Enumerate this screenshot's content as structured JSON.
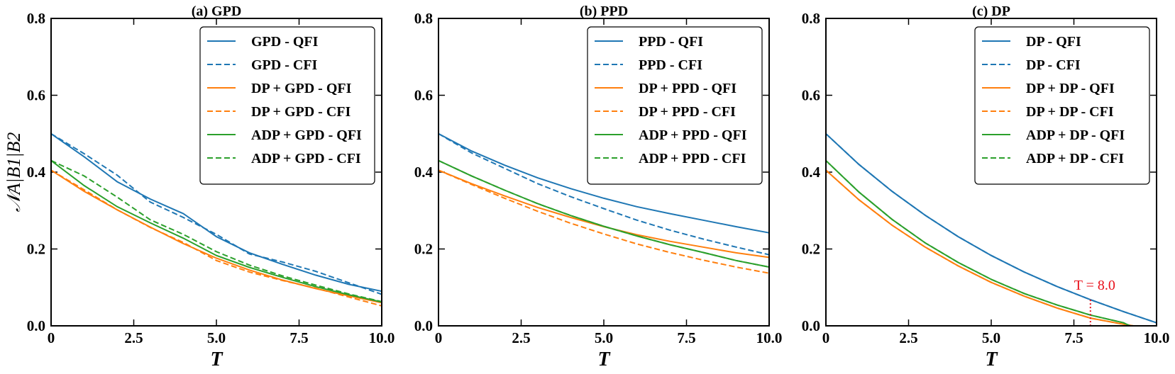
{
  "chart_data": [
    {
      "type": "line",
      "title": "(a) GPD",
      "xlabel": "T",
      "ylabel": "𝒩A|B1|B2",
      "xlim": [
        0,
        10
      ],
      "ylim": [
        0,
        0.8
      ],
      "xticks": [
        "0",
        "2.5",
        "5.0",
        "7.5",
        "10.0"
      ],
      "yticks": [
        "0.0",
        "0.2",
        "0.4",
        "0.6",
        "0.8"
      ],
      "legend_loc": "upper-right",
      "series": [
        {
          "name": "GPD - QFI",
          "color": "#1f77b4",
          "dash": "solid",
          "x": [
            0,
            1,
            2,
            3,
            4,
            5,
            6,
            7,
            8,
            9,
            10
          ],
          "y": [
            0.5,
            0.44,
            0.375,
            0.33,
            0.292,
            0.232,
            0.19,
            0.16,
            0.132,
            0.108,
            0.09
          ]
        },
        {
          "name": "GPD - CFI",
          "color": "#1f77b4",
          "dash": "dashed",
          "x": [
            0,
            1,
            2,
            3,
            4,
            5,
            6,
            7,
            8,
            9,
            10
          ],
          "y": [
            0.5,
            0.448,
            0.392,
            0.322,
            0.282,
            0.238,
            0.187,
            0.166,
            0.142,
            0.112,
            0.082
          ]
        },
        {
          "name": "DP + GPD - QFI",
          "color": "#ff7f0e",
          "dash": "solid",
          "x": [
            0,
            1,
            2,
            3,
            4,
            5,
            6,
            7,
            8,
            9,
            10
          ],
          "y": [
            0.405,
            0.35,
            0.302,
            0.257,
            0.214,
            0.176,
            0.145,
            0.119,
            0.097,
            0.078,
            0.06
          ]
        },
        {
          "name": "DP + GPD - CFI",
          "color": "#ff7f0e",
          "dash": "dashed",
          "x": [
            0,
            1,
            2,
            3,
            4,
            5,
            6,
            7,
            8,
            9,
            10
          ],
          "y": [
            0.405,
            0.354,
            0.302,
            0.256,
            0.217,
            0.17,
            0.14,
            0.118,
            0.098,
            0.075,
            0.052
          ]
        },
        {
          "name": "ADP + GPD - QFI",
          "color": "#2ca02c",
          "dash": "solid",
          "x": [
            0,
            1,
            2,
            3,
            4,
            5,
            6,
            7,
            8,
            9,
            10
          ],
          "y": [
            0.43,
            0.365,
            0.31,
            0.268,
            0.228,
            0.183,
            0.152,
            0.126,
            0.102,
            0.081,
            0.062
          ]
        },
        {
          "name": "ADP + GPD - CFI",
          "color": "#2ca02c",
          "dash": "dashed",
          "x": [
            0,
            1,
            2,
            3,
            4,
            5,
            6,
            7,
            8,
            9,
            10
          ],
          "y": [
            0.43,
            0.39,
            0.335,
            0.276,
            0.238,
            0.193,
            0.158,
            0.13,
            0.106,
            0.083,
            0.063
          ]
        }
      ]
    },
    {
      "type": "line",
      "title": "(b) PPD",
      "xlabel": "T",
      "ylabel": "",
      "xlim": [
        0,
        10
      ],
      "ylim": [
        0,
        0.8
      ],
      "xticks": [
        "0",
        "2.5",
        "5.0",
        "7.5",
        "10.0"
      ],
      "yticks": [
        "0.0",
        "0.2",
        "0.4",
        "0.6",
        "0.8"
      ],
      "legend_loc": "upper-right",
      "series": [
        {
          "name": "PPD - QFI",
          "color": "#1f77b4",
          "dash": "solid",
          "x": [
            0,
            1,
            2,
            3,
            4,
            5,
            6,
            7,
            8,
            9,
            10
          ],
          "y": [
            0.5,
            0.455,
            0.418,
            0.385,
            0.357,
            0.332,
            0.31,
            0.292,
            0.275,
            0.258,
            0.242
          ]
        },
        {
          "name": "PPD - CFI",
          "color": "#1f77b4",
          "dash": "dashed",
          "x": [
            0,
            1,
            2,
            3,
            4,
            5,
            6,
            7,
            8,
            9,
            10
          ],
          "y": [
            0.5,
            0.45,
            0.41,
            0.37,
            0.336,
            0.305,
            0.275,
            0.249,
            0.226,
            0.205,
            0.185
          ]
        },
        {
          "name": "DP + PPD - QFI",
          "color": "#ff7f0e",
          "dash": "solid",
          "x": [
            0,
            1,
            2,
            3,
            4,
            5,
            6,
            7,
            8,
            9,
            10
          ],
          "y": [
            0.405,
            0.37,
            0.338,
            0.308,
            0.282,
            0.258,
            0.237,
            0.22,
            0.205,
            0.19,
            0.178
          ]
        },
        {
          "name": "DP + PPD - CFI",
          "color": "#ff7f0e",
          "dash": "dashed",
          "x": [
            0,
            1,
            2,
            3,
            4,
            5,
            6,
            7,
            8,
            9,
            10
          ],
          "y": [
            0.405,
            0.368,
            0.332,
            0.298,
            0.267,
            0.239,
            0.213,
            0.191,
            0.171,
            0.153,
            0.137
          ]
        },
        {
          "name": "ADP + PPD - QFI",
          "color": "#2ca02c",
          "dash": "solid",
          "x": [
            0,
            1,
            2,
            3,
            4,
            5,
            6,
            7,
            8,
            9,
            10
          ],
          "y": [
            0.43,
            0.39,
            0.353,
            0.318,
            0.287,
            0.259,
            0.234,
            0.211,
            0.191,
            0.17,
            0.153
          ]
        },
        {
          "name": "ADP + PPD - CFI",
          "color": "#2ca02c",
          "dash": "dashed",
          "x": [
            0,
            1,
            2,
            3,
            4,
            5,
            6,
            7,
            8,
            9,
            10
          ],
          "y": [
            0.43,
            0.39,
            0.353,
            0.318,
            0.287,
            0.259,
            0.234,
            0.211,
            0.191,
            0.17,
            0.153
          ]
        }
      ]
    },
    {
      "type": "line",
      "title": "(c) DP",
      "xlabel": "T",
      "ylabel": "",
      "xlim": [
        0,
        10
      ],
      "ylim": [
        0,
        0.8
      ],
      "xticks": [
        "0",
        "2.5",
        "5.0",
        "7.5",
        "10.0"
      ],
      "yticks": [
        "0.0",
        "0.2",
        "0.4",
        "0.6",
        "0.8"
      ],
      "legend_loc": "upper-right",
      "annotation": {
        "text": "T = 8.0",
        "x": 8.0
      },
      "series": [
        {
          "name": "DP - QFI",
          "color": "#1f77b4",
          "dash": "solid",
          "x": [
            0,
            1,
            2,
            3,
            4,
            5,
            6,
            7,
            8,
            9,
            10
          ],
          "y": [
            0.5,
            0.42,
            0.35,
            0.288,
            0.232,
            0.183,
            0.14,
            0.102,
            0.068,
            0.037,
            0.008
          ]
        },
        {
          "name": "DP - CFI",
          "color": "#1f77b4",
          "dash": "dashed",
          "x": [
            0,
            1,
            2,
            3,
            4,
            5,
            6,
            7,
            8,
            9,
            10
          ],
          "y": [
            0.5,
            0.42,
            0.35,
            0.288,
            0.232,
            0.183,
            0.14,
            0.102,
            0.068,
            0.037,
            0.008
          ]
        },
        {
          "name": "DP + DP - QFI",
          "color": "#ff7f0e",
          "dash": "solid",
          "x": [
            0,
            1,
            2,
            3,
            4,
            5,
            6,
            7,
            8,
            9,
            9.3
          ],
          "y": [
            0.405,
            0.328,
            0.262,
            0.205,
            0.156,
            0.113,
            0.077,
            0.046,
            0.02,
            0.004,
            0.0
          ]
        },
        {
          "name": "DP + DP - CFI",
          "color": "#ff7f0e",
          "dash": "dashed",
          "x": [
            0,
            1,
            2,
            3,
            4,
            5,
            6,
            7,
            8,
            9,
            9.3
          ],
          "y": [
            0.405,
            0.328,
            0.262,
            0.205,
            0.156,
            0.113,
            0.077,
            0.046,
            0.02,
            0.004,
            0.0
          ]
        },
        {
          "name": "ADP + DP - QFI",
          "color": "#2ca02c",
          "dash": "solid",
          "x": [
            0,
            1,
            2,
            3,
            4,
            5,
            6,
            7,
            8,
            9,
            9.2
          ],
          "y": [
            0.43,
            0.348,
            0.277,
            0.216,
            0.165,
            0.121,
            0.084,
            0.054,
            0.028,
            0.008,
            0.0
          ]
        },
        {
          "name": "ADP + DP - CFI",
          "color": "#2ca02c",
          "dash": "dashed",
          "x": [
            0,
            1,
            2,
            3,
            4,
            5,
            6,
            7,
            8,
            9,
            9.2
          ],
          "y": [
            0.43,
            0.348,
            0.277,
            0.216,
            0.165,
            0.121,
            0.084,
            0.054,
            0.028,
            0.008,
            0.0
          ]
        }
      ]
    }
  ]
}
